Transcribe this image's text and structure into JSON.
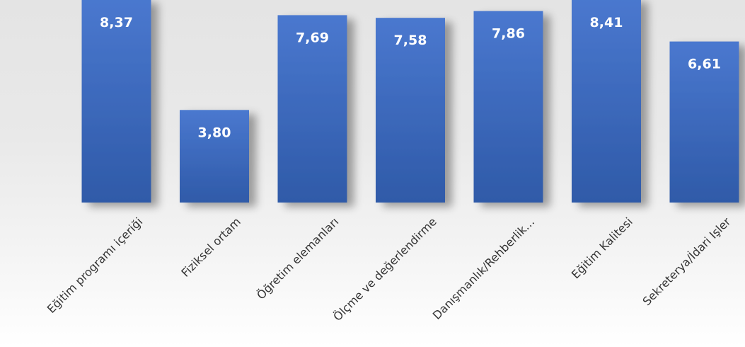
{
  "chart_data": {
    "type": "bar",
    "categories": [
      "Eğitim programı içeriği",
      "Fiziksel ortam",
      "Öğretim elemanları",
      "Ölçme ve değerlendirme",
      "Danışmanlık/Rehberlik…",
      "Eğitim Kalitesi",
      "Sekreterya/İdari Işler"
    ],
    "values": [
      8.37,
      3.8,
      7.69,
      7.58,
      7.86,
      8.41,
      6.61
    ],
    "data_labels": [
      "8,37",
      "3,80",
      "7,69",
      "7,58",
      "7,86",
      "8,41",
      "6,61"
    ],
    "title": "",
    "xlabel": "",
    "ylabel": "",
    "ylim": [
      0,
      8.4
    ],
    "grid": false,
    "legend": "none",
    "colors": {
      "bar_top": "#4a78cf",
      "bar_bottom": "#2f5aa8",
      "data_label": "#ffffff",
      "category_label": "#333333"
    }
  }
}
